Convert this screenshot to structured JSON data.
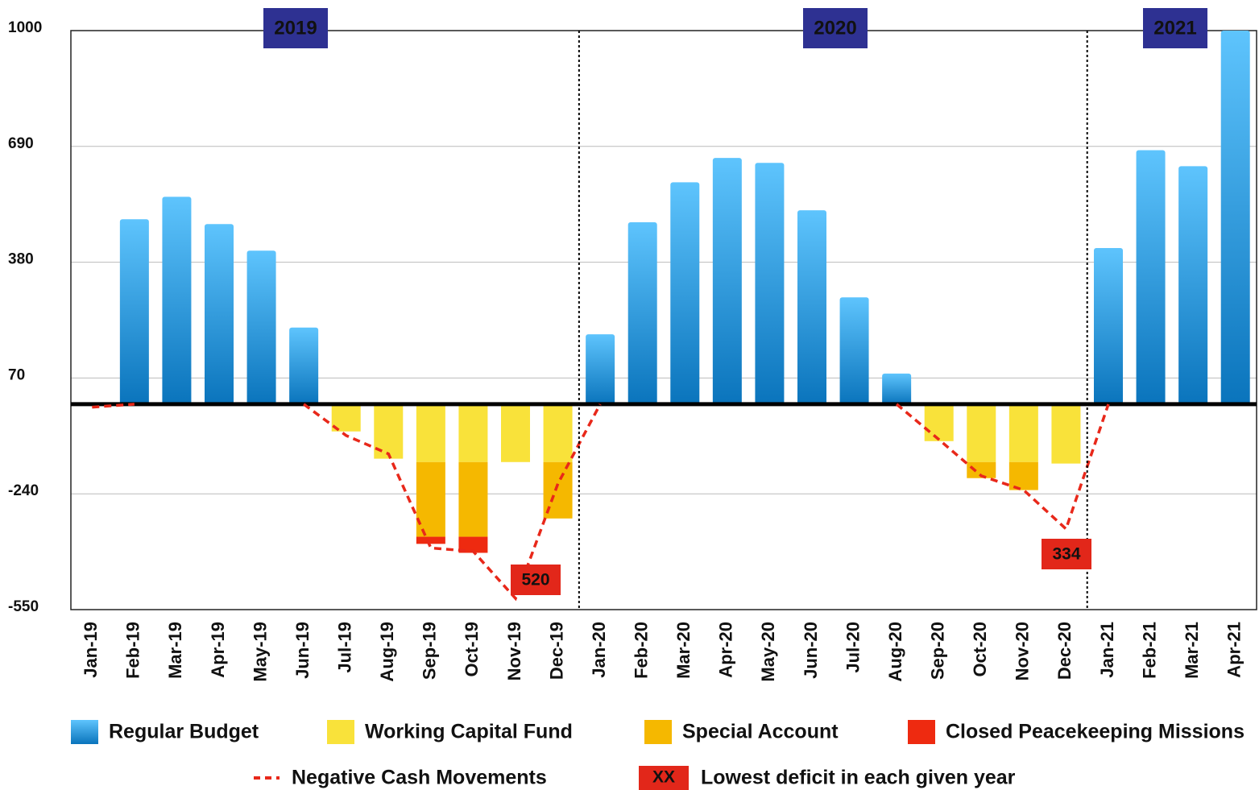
{
  "chart_data": {
    "type": "bar",
    "categories": [
      "Jan-19",
      "Feb-19",
      "Mar-19",
      "Apr-19",
      "May-19",
      "Jun-19",
      "Jul-19",
      "Aug-19",
      "Sep-19",
      "Oct-19",
      "Nov-19",
      "Dec-19",
      "Jan-20",
      "Feb-20",
      "Mar-20",
      "Apr-20",
      "May-20",
      "Jun-20",
      "Jul-20",
      "Aug-20",
      "Sep-20",
      "Oct-20",
      "Nov-20",
      "Dec-20",
      "Jan-21",
      "Feb-21",
      "Mar-21",
      "Apr-21"
    ],
    "series": [
      {
        "name": "Regular Budget",
        "color": "#1a8fd8",
        "values": [
          null,
          495,
          555,
          482,
          411,
          205,
          null,
          null,
          null,
          null,
          null,
          null,
          187,
          487,
          594,
          659,
          646,
          519,
          286,
          82,
          null,
          null,
          null,
          null,
          418,
          680,
          637,
          1000
        ]
      },
      {
        "name": "Working Capital Fund",
        "color": "#f9e23a",
        "values": [
          null,
          null,
          null,
          null,
          null,
          null,
          -73,
          -146,
          -155,
          -155,
          -155,
          -155,
          null,
          null,
          null,
          null,
          null,
          null,
          null,
          null,
          -99,
          -155,
          -155,
          -159,
          null,
          null,
          null,
          null
        ]
      },
      {
        "name": "Special Account",
        "color": "#f5b800",
        "values": [
          null,
          null,
          null,
          null,
          null,
          null,
          null,
          null,
          -200,
          -200,
          null,
          -151,
          null,
          null,
          null,
          null,
          null,
          null,
          null,
          null,
          null,
          -43,
          -75,
          null,
          null,
          null,
          null,
          null
        ]
      },
      {
        "name": "Closed Peacekeeping Missions",
        "color": "#ee2a10",
        "values": [
          null,
          null,
          null,
          null,
          null,
          null,
          null,
          null,
          -19,
          -43,
          null,
          null,
          null,
          null,
          null,
          null,
          null,
          null,
          null,
          null,
          null,
          null,
          null,
          null,
          null,
          null,
          null,
          null
        ]
      },
      {
        "name": "Negative Cash Movements",
        "type": "line",
        "color": "#e8281a",
        "values": [
          -8,
          0,
          null,
          null,
          null,
          0,
          -84,
          -133,
          -385,
          -394,
          -520,
          -213,
          0,
          null,
          null,
          null,
          null,
          null,
          null,
          0,
          -95,
          -192,
          -230,
          -334,
          0,
          null,
          null,
          null
        ]
      }
    ],
    "ylim": [
      -550,
      1000
    ],
    "yticks": [
      -550,
      -240,
      70,
      380,
      690,
      1000
    ],
    "grid": true,
    "year_labels": [
      "2019",
      "2020",
      "2021"
    ],
    "annotations": [
      "520",
      "334"
    ],
    "legend_extra": {
      "symbol": "XX",
      "text": "Lowest deficit in each given year"
    }
  }
}
